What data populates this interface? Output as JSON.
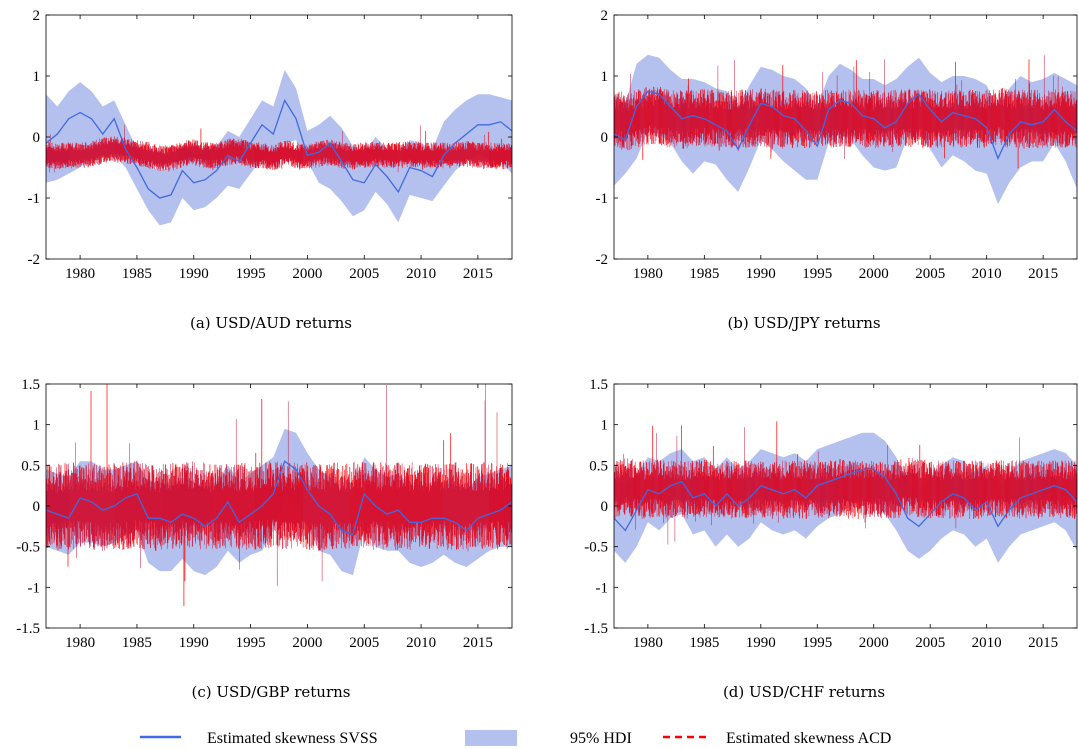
{
  "chart_data": [
    {
      "type": "line",
      "caption": "(a)  USD/AUD returns",
      "xticks": [
        1980,
        1985,
        1990,
        1995,
        2000,
        2005,
        2010,
        2015
      ],
      "yticks": [
        "-2",
        "-1",
        "0",
        "1",
        "2"
      ],
      "xlim": [
        1977,
        2018
      ],
      "ylim": [
        -2,
        2
      ],
      "svss": {
        "x": [
          1977,
          1978,
          1979,
          1980,
          1981,
          1982,
          1983,
          1984,
          1985,
          1986,
          1987,
          1988,
          1989,
          1990,
          1991,
          1992,
          1993,
          1994,
          1995,
          1996,
          1997,
          1998,
          1999,
          2000,
          2001,
          2002,
          2003,
          2004,
          2005,
          2006,
          2007,
          2008,
          2009,
          2010,
          2011,
          2012,
          2013,
          2014,
          2015,
          2016,
          2017,
          2018
        ],
        "y": [
          -0.1,
          0.05,
          0.3,
          0.4,
          0.3,
          0.05,
          0.3,
          -0.2,
          -0.5,
          -0.85,
          -1.0,
          -0.95,
          -0.55,
          -0.75,
          -0.7,
          -0.55,
          -0.3,
          -0.4,
          -0.1,
          0.2,
          0.05,
          0.6,
          0.3,
          -0.3,
          -0.25,
          -0.1,
          -0.4,
          -0.7,
          -0.75,
          -0.45,
          -0.65,
          -0.9,
          -0.5,
          -0.55,
          -0.65,
          -0.3,
          -0.1,
          0.05,
          0.2,
          0.2,
          0.25,
          0.1
        ]
      },
      "hdi_lower": [
        -0.75,
        -0.7,
        -0.6,
        -0.5,
        -0.35,
        -0.3,
        -0.3,
        -0.5,
        -0.85,
        -1.2,
        -1.45,
        -1.4,
        -1.0,
        -1.2,
        -1.15,
        -1.0,
        -0.8,
        -0.85,
        -0.6,
        -0.35,
        -0.3,
        -0.1,
        -0.05,
        -0.4,
        -0.75,
        -0.85,
        -1.05,
        -1.3,
        -1.2,
        -0.9,
        -1.1,
        -1.4,
        -0.95,
        -1.0,
        -1.05,
        -0.8,
        -0.55,
        -0.4,
        -0.3,
        -0.35,
        -0.4,
        -0.6
      ],
      "hdi_upper": [
        0.7,
        0.5,
        0.75,
        0.9,
        0.75,
        0.5,
        0.6,
        0.2,
        -0.2,
        -0.45,
        -0.55,
        -0.5,
        -0.15,
        -0.3,
        -0.25,
        -0.15,
        0.1,
        0.0,
        0.3,
        0.6,
        0.5,
        1.1,
        0.8,
        0.1,
        0.2,
        0.35,
        0.15,
        -0.15,
        -0.25,
        0.0,
        -0.2,
        -0.4,
        -0.05,
        -0.1,
        -0.2,
        0.25,
        0.45,
        0.6,
        0.7,
        0.7,
        0.65,
        0.6
      ],
      "acd": {
        "center": [
          -0.28,
          -0.32,
          -0.3,
          -0.3,
          -0.28,
          -0.22,
          -0.2,
          -0.22,
          -0.26,
          -0.3,
          -0.35,
          -0.35,
          -0.28,
          -0.25,
          -0.3,
          -0.3,
          -0.25,
          -0.22,
          -0.3,
          -0.3,
          -0.35,
          -0.25,
          -0.3,
          -0.32,
          -0.28,
          -0.25,
          -0.3,
          -0.32,
          -0.3,
          -0.28,
          -0.3,
          -0.3,
          -0.28,
          -0.3,
          -0.3,
          -0.3,
          -0.3,
          -0.28,
          -0.3,
          -0.3,
          -0.32,
          -0.3
        ],
        "spread": 0.18,
        "spike": 0.35
      }
    },
    {
      "type": "line",
      "caption": "(b)  USD/JPY returns",
      "xticks": [
        1980,
        1985,
        1990,
        1995,
        2000,
        2005,
        2010,
        2015
      ],
      "yticks": [
        "-2",
        "-1",
        "0",
        "1",
        "2"
      ],
      "xlim": [
        1977,
        2018
      ],
      "ylim": [
        -2,
        2
      ],
      "svss": {
        "x": [
          1977,
          1978,
          1979,
          1980,
          1981,
          1982,
          1983,
          1984,
          1985,
          1986,
          1987,
          1988,
          1989,
          1990,
          1991,
          1992,
          1993,
          1994,
          1995,
          1996,
          1997,
          1998,
          1999,
          2000,
          2001,
          2002,
          2003,
          2004,
          2005,
          2006,
          2007,
          2008,
          2009,
          2010,
          2011,
          2012,
          2013,
          2014,
          2015,
          2016,
          2017,
          2018
        ],
        "y": [
          0.05,
          -0.05,
          0.5,
          0.75,
          0.7,
          0.5,
          0.3,
          0.35,
          0.3,
          0.2,
          0.1,
          -0.2,
          0.2,
          0.55,
          0.5,
          0.35,
          0.3,
          0.1,
          -0.15,
          0.45,
          0.6,
          0.55,
          0.35,
          0.3,
          0.15,
          0.25,
          0.55,
          0.7,
          0.45,
          0.25,
          0.4,
          0.35,
          0.3,
          0.15,
          -0.35,
          0.05,
          0.25,
          0.2,
          0.25,
          0.45,
          0.25,
          0.1
        ]
      },
      "hdi_lower": [
        -0.8,
        -0.6,
        -0.35,
        0.1,
        0.05,
        -0.1,
        -0.4,
        -0.6,
        -0.4,
        -0.45,
        -0.7,
        -0.9,
        -0.5,
        -0.05,
        -0.2,
        -0.4,
        -0.55,
        -0.7,
        -0.7,
        -0.1,
        0.05,
        -0.05,
        -0.3,
        -0.5,
        -0.55,
        -0.5,
        0.0,
        0.05,
        -0.2,
        -0.5,
        -0.3,
        -0.4,
        -0.55,
        -0.6,
        -1.1,
        -0.75,
        -0.5,
        -0.4,
        -0.4,
        -0.1,
        -0.4,
        -0.85
      ],
      "hdi_upper": [
        0.7,
        0.55,
        1.2,
        1.35,
        1.3,
        1.1,
        0.95,
        0.95,
        0.9,
        0.8,
        0.75,
        0.5,
        0.85,
        1.15,
        1.1,
        1.0,
        0.95,
        0.8,
        0.5,
        1.0,
        1.2,
        1.1,
        0.95,
        0.95,
        0.85,
        0.95,
        1.15,
        1.3,
        1.05,
        0.9,
        1.0,
        1.0,
        0.95,
        0.85,
        0.45,
        0.8,
        1.0,
        0.9,
        0.95,
        1.05,
        0.95,
        0.85
      ],
      "acd": {
        "center": [
          0.3,
          0.25,
          0.3,
          0.35,
          0.35,
          0.3,
          0.28,
          0.3,
          0.32,
          0.3,
          0.28,
          0.3,
          0.3,
          0.32,
          0.3,
          0.28,
          0.3,
          0.3,
          0.28,
          0.3,
          0.32,
          0.3,
          0.3,
          0.28,
          0.3,
          0.3,
          0.32,
          0.3,
          0.3,
          0.28,
          0.3,
          0.3,
          0.3,
          0.3,
          0.35,
          0.3,
          0.3,
          0.3,
          0.28,
          0.3,
          0.3,
          0.3
        ],
        "spread": 0.4,
        "spike": 0.7
      }
    },
    {
      "type": "line",
      "caption": "(c)  USD/GBP returns",
      "xticks": [
        1980,
        1985,
        1990,
        1995,
        2000,
        2005,
        2010,
        2015
      ],
      "yticks": [
        "-1.5",
        "-1",
        "-0.5",
        "0",
        "0.5",
        "1",
        "1.5"
      ],
      "xlim": [
        1977,
        2018
      ],
      "ylim": [
        -1.5,
        1.5
      ],
      "svss": {
        "x": [
          1977,
          1978,
          1979,
          1980,
          1981,
          1982,
          1983,
          1984,
          1985,
          1986,
          1987,
          1988,
          1989,
          1990,
          1991,
          1992,
          1993,
          1994,
          1995,
          1996,
          1997,
          1998,
          1999,
          2000,
          2001,
          2002,
          2003,
          2004,
          2005,
          2006,
          2007,
          2008,
          2009,
          2010,
          2011,
          2012,
          2013,
          2014,
          2015,
          2016,
          2017,
          2018
        ],
        "y": [
          -0.05,
          -0.1,
          -0.15,
          0.1,
          0.05,
          -0.05,
          0.0,
          0.1,
          0.15,
          -0.15,
          -0.15,
          -0.2,
          -0.1,
          -0.15,
          -0.25,
          -0.15,
          0.05,
          -0.2,
          -0.1,
          0.0,
          0.15,
          0.55,
          0.45,
          0.2,
          0.0,
          -0.1,
          -0.3,
          -0.35,
          0.15,
          0.0,
          -0.1,
          -0.05,
          -0.2,
          -0.2,
          -0.15,
          -0.15,
          -0.2,
          -0.3,
          -0.15,
          -0.1,
          -0.05,
          0.05
        ]
      },
      "hdi_lower": [
        -0.5,
        -0.55,
        -0.6,
        -0.45,
        -0.45,
        -0.5,
        -0.45,
        -0.35,
        -0.3,
        -0.7,
        -0.8,
        -0.8,
        -0.65,
        -0.8,
        -0.85,
        -0.75,
        -0.55,
        -0.7,
        -0.6,
        -0.55,
        -0.3,
        0.1,
        0.0,
        -0.25,
        -0.55,
        -0.6,
        -0.8,
        -0.85,
        -0.3,
        -0.5,
        -0.55,
        -0.55,
        -0.7,
        -0.75,
        -0.7,
        -0.6,
        -0.7,
        -0.75,
        -0.65,
        -0.55,
        -0.5,
        -0.5
      ],
      "hdi_upper": [
        0.45,
        0.4,
        0.35,
        0.55,
        0.55,
        0.45,
        0.45,
        0.5,
        0.55,
        0.3,
        0.3,
        0.25,
        0.35,
        0.3,
        0.2,
        0.3,
        0.5,
        0.3,
        0.4,
        0.5,
        0.6,
        0.95,
        0.9,
        0.65,
        0.45,
        0.35,
        0.2,
        0.15,
        0.6,
        0.45,
        0.35,
        0.4,
        0.25,
        0.25,
        0.3,
        0.3,
        0.25,
        0.2,
        0.35,
        0.4,
        0.45,
        0.5
      ],
      "acd": {
        "center": [
          0.0,
          -0.02,
          0.0,
          0.02,
          0.0,
          -0.02,
          0.0,
          0.0,
          0.02,
          0.0,
          -0.02,
          0.0,
          0.0,
          0.02,
          0.0,
          -0.02,
          0.0,
          0.0,
          0.0,
          0.0,
          0.02,
          0.0,
          0.0,
          0.0,
          -0.02,
          0.0,
          0.0,
          0.02,
          0.0,
          0.0,
          0.0,
          0.0,
          0.0,
          0.0,
          -0.02,
          0.0,
          0.0,
          0.0,
          0.0,
          0.0,
          0.0,
          0.0
        ],
        "spread": 0.45,
        "spike": 1.3
      }
    },
    {
      "type": "line",
      "caption": "(d)  USD/CHF returns",
      "xticks": [
        1980,
        1985,
        1990,
        1995,
        2000,
        2005,
        2010,
        2015
      ],
      "yticks": [
        "-1.5",
        "-1",
        "-0.5",
        "0",
        "0.5",
        "1",
        "1.5"
      ],
      "xlim": [
        1977,
        2018
      ],
      "ylim": [
        -1.5,
        1.5
      ],
      "svss": {
        "x": [
          1977,
          1978,
          1979,
          1980,
          1981,
          1982,
          1983,
          1984,
          1985,
          1986,
          1987,
          1988,
          1989,
          1990,
          1991,
          1992,
          1993,
          1994,
          1995,
          1996,
          1997,
          1998,
          1999,
          2000,
          2001,
          2002,
          2003,
          2004,
          2005,
          2006,
          2007,
          2008,
          2009,
          2010,
          2011,
          2012,
          2013,
          2014,
          2015,
          2016,
          2017,
          2018
        ],
        "y": [
          -0.15,
          -0.3,
          -0.05,
          0.2,
          0.15,
          0.25,
          0.3,
          0.1,
          0.15,
          0.0,
          0.15,
          0.0,
          0.1,
          0.25,
          0.2,
          0.15,
          0.2,
          0.1,
          0.25,
          0.3,
          0.35,
          0.4,
          0.45,
          0.45,
          0.35,
          0.15,
          -0.15,
          -0.25,
          -0.1,
          0.05,
          0.15,
          0.1,
          -0.05,
          0.05,
          -0.25,
          -0.05,
          0.1,
          0.15,
          0.2,
          0.25,
          0.2,
          0.05
        ]
      },
      "hdi_lower": [
        -0.55,
        -0.7,
        -0.5,
        -0.2,
        -0.3,
        -0.15,
        -0.1,
        -0.35,
        -0.3,
        -0.5,
        -0.35,
        -0.5,
        -0.4,
        -0.2,
        -0.3,
        -0.35,
        -0.3,
        -0.4,
        -0.25,
        -0.15,
        -0.1,
        0.0,
        0.05,
        0.05,
        -0.1,
        -0.3,
        -0.55,
        -0.65,
        -0.55,
        -0.4,
        -0.3,
        -0.35,
        -0.5,
        -0.4,
        -0.7,
        -0.5,
        -0.35,
        -0.3,
        -0.25,
        -0.2,
        -0.3,
        -0.55
      ],
      "hdi_upper": [
        0.35,
        0.25,
        0.4,
        0.6,
        0.55,
        0.65,
        0.7,
        0.55,
        0.6,
        0.45,
        0.6,
        0.45,
        0.55,
        0.7,
        0.65,
        0.6,
        0.65,
        0.55,
        0.7,
        0.75,
        0.8,
        0.85,
        0.9,
        0.9,
        0.8,
        0.6,
        0.3,
        0.2,
        0.35,
        0.5,
        0.6,
        0.55,
        0.4,
        0.5,
        0.2,
        0.4,
        0.55,
        0.6,
        0.65,
        0.7,
        0.65,
        0.5
      ],
      "acd": {
        "center": [
          0.2,
          0.25,
          0.2,
          0.2,
          0.22,
          0.2,
          0.2,
          0.2,
          0.22,
          0.2,
          0.2,
          0.2,
          0.2,
          0.22,
          0.2,
          0.2,
          0.2,
          0.2,
          0.2,
          0.2,
          0.22,
          0.2,
          0.2,
          0.2,
          0.2,
          0.2,
          0.25,
          0.22,
          0.2,
          0.2,
          0.2,
          0.2,
          0.2,
          0.2,
          0.22,
          0.2,
          0.2,
          0.2,
          0.2,
          0.2,
          0.2,
          0.2
        ],
        "spread": 0.3,
        "spike": 0.6
      }
    }
  ],
  "legend": {
    "svss_label": "Estimated skewness SVSS",
    "hdi_label": "95% HDI",
    "acd_label": "Estimated skewness ACD"
  },
  "colors": {
    "svss": "#4169e1",
    "hdi": "#b4c1ef",
    "acd": "#ff0000",
    "acd_dark": "#c8143c",
    "axis": "#000000"
  }
}
